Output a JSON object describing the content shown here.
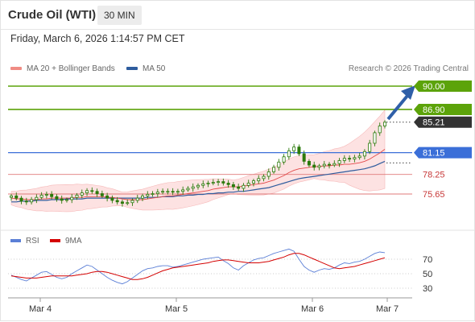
{
  "header": {
    "title": "Crude Oil (WTI)",
    "interval": "30 MIN"
  },
  "timestamp": "Friday, March 6, 2026 1:14:57 PM CET",
  "legend": {
    "items": [
      {
        "label": "MA 20 + Bollinger Bands",
        "color": "#f08c84"
      },
      {
        "label": "MA 50",
        "color": "#2e5c9e"
      }
    ],
    "credit": "Research © 2026 Trading Central"
  },
  "colors": {
    "resistance": "#5ca30a",
    "pivot": "#3b6fd8",
    "support": "#c73838",
    "price_tag": "#333333",
    "arrow": "#2f5fa8",
    "candle": "#2b7a0b",
    "ma20": "#e24a4a",
    "ma50": "#2e5c9e",
    "band_fill": "#fde2e2",
    "rsi": "#5b7fd6",
    "rsi_ma": "#d40000"
  },
  "price_levels": [
    {
      "label": "90.00",
      "kind": "resistance"
    },
    {
      "label": "86.90",
      "kind": "resistance"
    },
    {
      "label": "85.21",
      "kind": "last"
    },
    {
      "label": "81.15",
      "kind": "pivot"
    },
    {
      "label": "78.25",
      "kind": "support"
    },
    {
      "label": "75.65",
      "kind": "support"
    }
  ],
  "rsi_panel": {
    "legend": [
      {
        "label": "RSI",
        "color": "#5b7fd6"
      },
      {
        "label": "9MA",
        "color": "#d40000"
      }
    ],
    "ticks": [
      "70",
      "50",
      "30"
    ]
  },
  "x_axis": {
    "labels": [
      "Mar 4",
      "Mar 5",
      "Mar 6",
      "Mar 7"
    ]
  },
  "chart_data": {
    "type": "candlestick",
    "price_levels": [
      90.0,
      86.9,
      85.21,
      81.15,
      78.25,
      75.65
    ],
    "last_price": 85.21,
    "close_series": [
      75.4,
      75.1,
      74.7,
      74.6,
      74.9,
      75.2,
      75.5,
      75.6,
      75.3,
      75.0,
      74.8,
      74.9,
      75.2,
      75.5,
      75.8,
      76.1,
      76.0,
      75.7,
      75.4,
      75.1,
      74.8,
      74.6,
      74.4,
      74.5,
      74.8,
      75.1,
      75.4,
      75.6,
      75.7,
      75.9,
      76.0,
      76.0,
      75.9,
      76.0,
      76.2,
      76.4,
      76.6,
      76.8,
      77.0,
      77.1,
      77.2,
      77.3,
      77.1,
      76.9,
      76.6,
      76.4,
      76.8,
      77.1,
      77.4,
      77.7,
      78.0,
      78.6,
      79.2,
      79.9,
      80.6,
      81.4,
      81.9,
      81.0,
      80.0,
      79.5,
      79.2,
      79.4,
      79.6,
      79.5,
      79.7,
      80.1,
      80.4,
      80.3,
      80.5,
      80.7,
      81.3,
      82.4,
      83.8,
      84.7,
      85.2
    ],
    "ma20": [
      75.1,
      75.0,
      75.0,
      74.9,
      74.9,
      74.9,
      75.0,
      75.0,
      75.1,
      75.1,
      75.1,
      75.1,
      75.1,
      75.2,
      75.2,
      75.3,
      75.3,
      75.3,
      75.3,
      75.2,
      75.2,
      75.1,
      75.0,
      74.9,
      74.9,
      74.9,
      74.9,
      75.0,
      75.1,
      75.2,
      75.3,
      75.4,
      75.4,
      75.5,
      75.6,
      75.7,
      75.8,
      75.9,
      76.0,
      76.1,
      76.3,
      76.4,
      76.5,
      76.6,
      76.6,
      76.6,
      76.7,
      76.8,
      76.9,
      77.0,
      77.1,
      77.3,
      77.5,
      77.8,
      78.1,
      78.5,
      78.8,
      79.0,
      79.1,
      79.2,
      79.3,
      79.3,
      79.4,
      79.4,
      79.5,
      79.5,
      79.6,
      79.6,
      79.7,
      79.8,
      80.0,
      80.3,
      80.7,
      81.1,
      81.6
    ],
    "ma50": [
      74.6,
      74.6,
      74.7,
      74.7,
      74.7,
      74.8,
      74.8,
      74.8,
      74.9,
      74.9,
      74.9,
      75.0,
      75.0,
      75.0,
      75.0,
      75.1,
      75.1,
      75.1,
      75.1,
      75.1,
      75.1,
      75.1,
      75.1,
      75.1,
      75.1,
      75.1,
      75.1,
      75.2,
      75.2,
      75.2,
      75.3,
      75.3,
      75.3,
      75.4,
      75.4,
      75.5,
      75.5,
      75.6,
      75.6,
      75.7,
      75.7,
      75.8,
      75.8,
      75.9,
      75.9,
      76.0,
      76.0,
      76.1,
      76.2,
      76.3,
      76.4,
      76.5,
      76.7,
      76.9,
      77.1,
      77.3,
      77.5,
      77.7,
      77.8,
      77.9,
      78.0,
      78.1,
      78.2,
      78.3,
      78.4,
      78.5,
      78.6,
      78.7,
      78.8,
      78.9,
      79.0,
      79.2,
      79.4,
      79.7,
      80.0
    ],
    "rsi": [
      48,
      45,
      42,
      40,
      44,
      48,
      52,
      53,
      49,
      45,
      43,
      45,
      50,
      54,
      58,
      62,
      60,
      55,
      50,
      45,
      41,
      38,
      36,
      39,
      44,
      49,
      54,
      57,
      58,
      60,
      61,
      61,
      59,
      60,
      62,
      64,
      66,
      68,
      70,
      71,
      72,
      73,
      68,
      64,
      58,
      55,
      61,
      65,
      69,
      71,
      72,
      75,
      78,
      80,
      82,
      84,
      81,
      70,
      60,
      55,
      52,
      55,
      57,
      56,
      58,
      62,
      65,
      64,
      66,
      67,
      70,
      74,
      78,
      80,
      79
    ],
    "rsi_ma": [
      47,
      46,
      45,
      44,
      44,
      44,
      45,
      46,
      47,
      47,
      47,
      47,
      47,
      48,
      49,
      50,
      52,
      53,
      53,
      52,
      50,
      48,
      46,
      44,
      42,
      42,
      43,
      45,
      48,
      51,
      54,
      56,
      58,
      59,
      60,
      61,
      62,
      63,
      64,
      65,
      67,
      68,
      69,
      69,
      68,
      67,
      66,
      65,
      65,
      65,
      66,
      67,
      69,
      71,
      73,
      76,
      78,
      78,
      76,
      73,
      70,
      67,
      64,
      61,
      58,
      57,
      58,
      59,
      60,
      62,
      64,
      66,
      68,
      70,
      72
    ]
  }
}
